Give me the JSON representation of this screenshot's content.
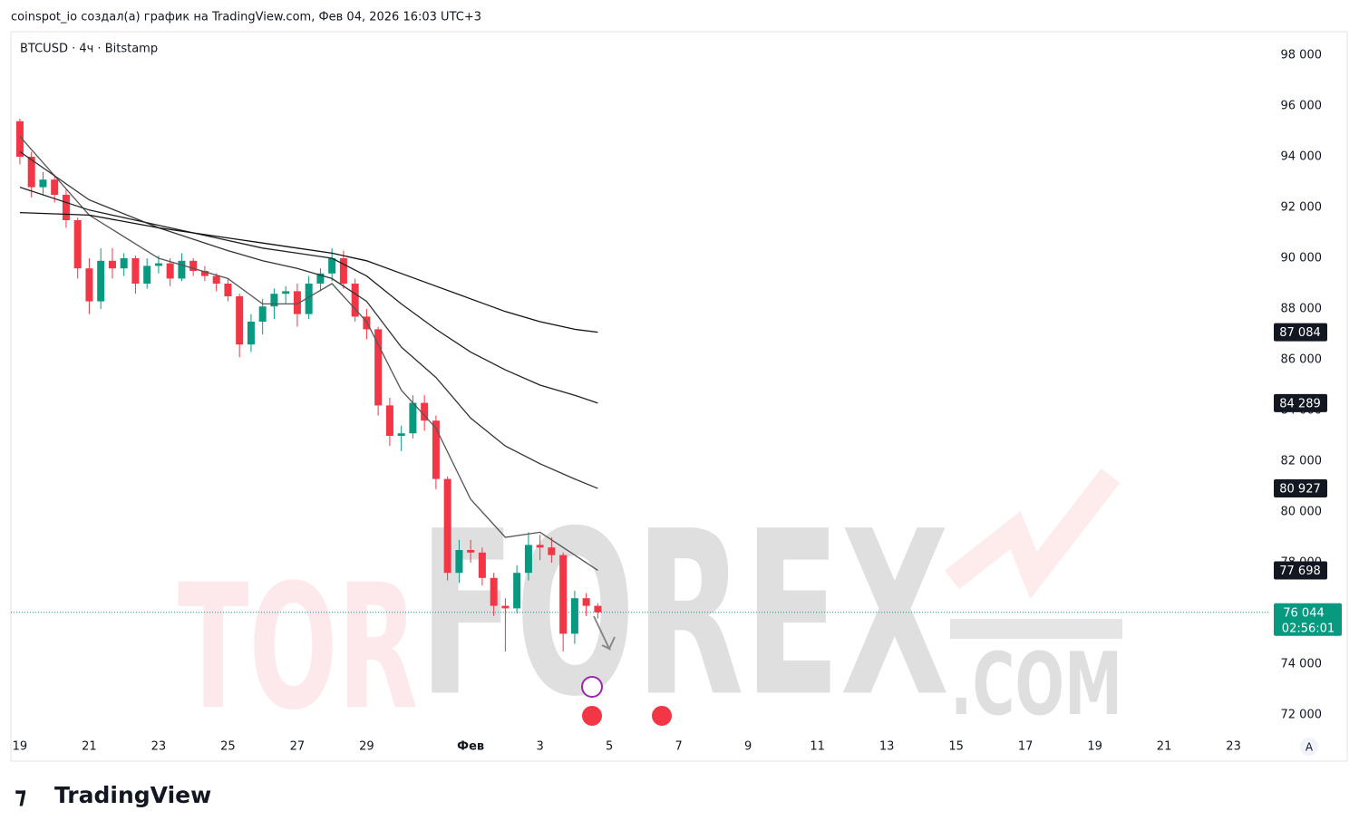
{
  "header": "coinspot_io создал(а) график на TradingView.com, Фев 04, 2026 16:03 UTC+3",
  "footer": "TradingView",
  "chart_data": {
    "type": "candlestick",
    "title": "BTCUSD · 4ч · Bitstamp",
    "watermark": {
      "first": "TOR",
      "second": "FOREX",
      "third": ".COM"
    },
    "scale_button": "A",
    "up_color": "#089981",
    "down_color": "#f23645",
    "x": [
      0,
      0.333,
      0.667,
      1,
      1.333,
      1.667,
      2,
      2.333,
      2.667,
      3,
      3.333,
      3.667,
      4,
      4.333,
      4.667,
      5,
      5.333,
      5.667,
      6,
      6.333,
      6.667,
      7,
      7.333,
      7.667,
      8,
      8.333,
      8.667,
      9,
      9.333,
      9.667,
      10,
      10.333,
      10.667,
      11,
      11.333,
      11.667,
      12,
      12.333,
      12.667,
      13,
      13.333,
      13.667,
      14,
      14.333,
      14.667,
      15,
      15.333,
      15.667,
      16,
      16.333,
      16.667
    ],
    "open": [
      95400,
      94000,
      92800,
      93100,
      92500,
      91500,
      89600,
      88300,
      89900,
      89600,
      90000,
      89000,
      89700,
      89800,
      89200,
      89900,
      89500,
      89300,
      89000,
      88500,
      86600,
      87500,
      88100,
      88600,
      88700,
      87800,
      89000,
      89400,
      90000,
      89000,
      87700,
      87200,
      84200,
      83000,
      83100,
      84300,
      83600,
      81300,
      77600,
      78500,
      78400,
      77400,
      76300,
      76200,
      77600,
      78700,
      78600,
      78300,
      75200,
      76600,
      76300
    ],
    "high": [
      95500,
      94200,
      93400,
      93300,
      92700,
      91600,
      90000,
      90400,
      90400,
      90200,
      90100,
      90000,
      90100,
      90000,
      90200,
      90000,
      89700,
      89400,
      89200,
      88600,
      87800,
      88400,
      88800,
      88900,
      89000,
      89300,
      89600,
      90400,
      90300,
      89200,
      88000,
      87300,
      84500,
      83400,
      84600,
      84600,
      83800,
      81400,
      78900,
      78900,
      78600,
      77600,
      76600,
      77900,
      79200,
      79100,
      79000,
      78400,
      76900,
      76800,
      76400
    ],
    "low": [
      93700,
      92400,
      92500,
      92200,
      91200,
      89200,
      87800,
      88000,
      89200,
      89300,
      88600,
      88800,
      89400,
      88900,
      89100,
      89300,
      89100,
      88700,
      88300,
      86100,
      86300,
      87000,
      87600,
      88200,
      87300,
      87600,
      88700,
      89100,
      88800,
      87500,
      86800,
      83800,
      82600,
      82400,
      82900,
      83200,
      80900,
      77300,
      77200,
      78000,
      77100,
      75900,
      74500,
      76000,
      77300,
      78100,
      78000,
      74500,
      74800,
      75900,
      75800
    ],
    "close": [
      94000,
      92800,
      93100,
      92500,
      91500,
      89600,
      88300,
      89900,
      89600,
      90000,
      89000,
      89700,
      89800,
      89200,
      89900,
      89500,
      89300,
      89000,
      88500,
      86600,
      87500,
      88100,
      88600,
      88700,
      87800,
      89000,
      89400,
      90000,
      89000,
      87700,
      87200,
      84200,
      83000,
      83100,
      84300,
      83600,
      81300,
      77600,
      78500,
      78400,
      77400,
      76300,
      76200,
      77600,
      78700,
      78600,
      78300,
      75200,
      76600,
      76300,
      76044
    ],
    "series": [
      {
        "color": "#555555",
        "x": [
          0,
          2,
          4,
          6,
          7,
          8,
          9,
          10,
          11,
          12,
          13,
          14,
          15,
          16,
          16.667
        ],
        "values": [
          94800,
          91700,
          90000,
          89200,
          88200,
          88200,
          89000,
          87500,
          84800,
          83300,
          80500,
          79000,
          79200,
          78300,
          77698
        ]
      },
      {
        "color": "#333333",
        "x": [
          0,
          2,
          4,
          6,
          7,
          8,
          9,
          10,
          11,
          12,
          13,
          14,
          15,
          16,
          16.667
        ],
        "values": [
          94200,
          92300,
          91200,
          90300,
          89900,
          89600,
          89200,
          88300,
          86500,
          85300,
          83700,
          82600,
          81900,
          81300,
          80927
        ]
      },
      {
        "color": "#222222",
        "x": [
          0,
          2,
          4,
          6,
          7,
          8,
          9,
          10,
          11,
          12,
          13,
          14,
          15,
          16,
          16.667
        ],
        "values": [
          92800,
          91900,
          91300,
          90700,
          90400,
          90200,
          90000,
          89300,
          88200,
          87200,
          86300,
          85600,
          85000,
          84600,
          84289
        ]
      },
      {
        "color": "#111111",
        "x": [
          0,
          2,
          4,
          6,
          7,
          8,
          9,
          10,
          11,
          12,
          13,
          14,
          15,
          16,
          16.667
        ],
        "values": [
          91800,
          91700,
          91200,
          90800,
          90600,
          90400,
          90200,
          89900,
          89400,
          88900,
          88400,
          87900,
          87500,
          87200,
          87084
        ]
      }
    ],
    "price_markers": [
      {
        "value": 87084,
        "label": "87 084"
      },
      {
        "value": 84289,
        "label": "84 289"
      },
      {
        "value": 80927,
        "label": "80 927"
      },
      {
        "value": 77698,
        "label": "77 698"
      }
    ],
    "last_price": {
      "value": 76044,
      "label": "76 044",
      "countdown": "02:56:01"
    },
    "xlim": [
      -0.26,
      35.9
    ],
    "ylim": [
      71321,
      98929
    ],
    "xticks": [
      {
        "value": 0,
        "label": "19"
      },
      {
        "value": 2,
        "label": "21"
      },
      {
        "value": 4,
        "label": "23"
      },
      {
        "value": 6,
        "label": "25"
      },
      {
        "value": 8,
        "label": "27"
      },
      {
        "value": 10,
        "label": "29"
      },
      {
        "value": 13,
        "label": "Фев"
      },
      {
        "value": 15,
        "label": "3"
      },
      {
        "value": 17,
        "label": "5"
      },
      {
        "value": 19,
        "label": "7"
      },
      {
        "value": 21,
        "label": "9"
      },
      {
        "value": 23,
        "label": "11"
      },
      {
        "value": 25,
        "label": "13"
      },
      {
        "value": 27,
        "label": "15"
      },
      {
        "value": 29,
        "label": "17"
      },
      {
        "value": 31,
        "label": "19"
      },
      {
        "value": 33,
        "label": "21"
      },
      {
        "value": 35,
        "label": "23"
      }
    ],
    "yticks": [
      {
        "value": 72000,
        "label": "72 000"
      },
      {
        "value": 74000,
        "label": "74 000"
      },
      {
        "value": 76000,
        "label": "76 000"
      },
      {
        "value": 78000,
        "label": "78 000"
      },
      {
        "value": 80000,
        "label": "80 000"
      },
      {
        "value": 82000,
        "label": "82 000"
      },
      {
        "value": 84000,
        "label": "84 000"
      },
      {
        "value": 86000,
        "label": "86 000"
      },
      {
        "value": 88000,
        "label": "88 000"
      },
      {
        "value": 90000,
        "label": "90 000"
      },
      {
        "value": 92000,
        "label": "92 000"
      },
      {
        "value": 94000,
        "label": "94 000"
      },
      {
        "value": 96000,
        "label": "96 000"
      },
      {
        "value": 98000,
        "label": "98 000"
      }
    ]
  }
}
